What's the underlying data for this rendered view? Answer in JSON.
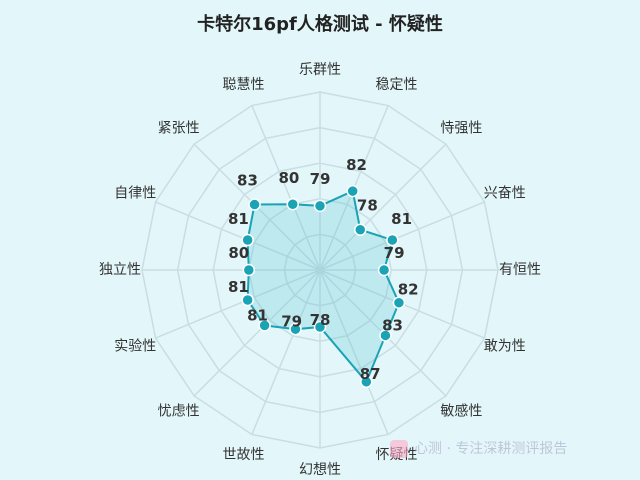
{
  "chart_data": {
    "type": "radar",
    "title": "卡特尔16pf人格测试 - 怀疑性",
    "categories": [
      "乐群性",
      "稳定性",
      "恃强性",
      "兴奋性",
      "有恒性",
      "敢为性",
      "敏感性",
      "怀疑性",
      "幻想性",
      "世故性",
      "忧虑性",
      "实验性",
      "独立性",
      "自律性",
      "紧张性",
      "聪慧性"
    ],
    "values": [
      79,
      82,
      78,
      81,
      79,
      82,
      83,
      87,
      78,
      79,
      81,
      81,
      80,
      81,
      83,
      80
    ],
    "series": [
      {
        "values": [
          79,
          82,
          78,
          81,
          79,
          82,
          83,
          87,
          78,
          79,
          81,
          81,
          80,
          81,
          83,
          80
        ]
      }
    ],
    "range": [
      70,
      95
    ],
    "grid": true,
    "colors": {
      "line": "#1aa3b5",
      "fill": "#5cc7d3",
      "point": "#1aa3b5",
      "grid": "#c9dde2"
    }
  },
  "watermark": {
    "text": "心测 · 专注深耕测评报告"
  }
}
